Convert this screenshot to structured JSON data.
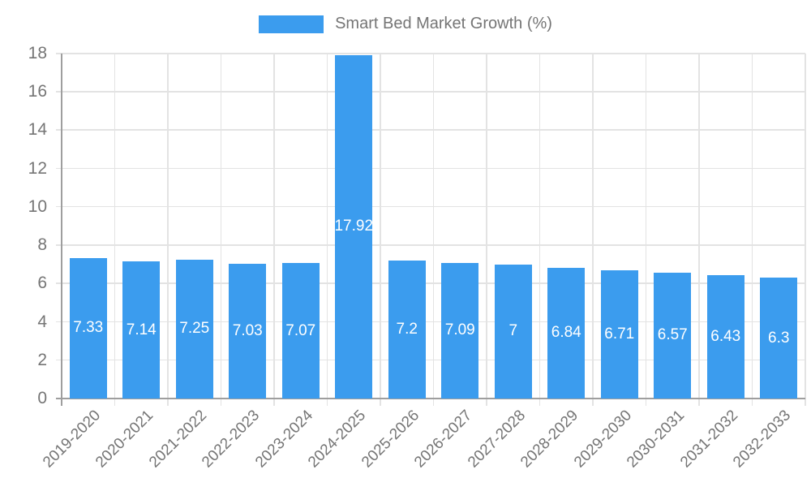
{
  "legend": {
    "label": "Smart Bed Market Growth (%)"
  },
  "colors": {
    "bar": "#3b9cee",
    "axis": "#9e9e9e",
    "grid": "#e3e3e3",
    "tick_text": "#757575",
    "bar_label_text": "#ffffff"
  },
  "chart_data": {
    "type": "bar",
    "title": "",
    "legend_entries": [
      "Smart Bed Market Growth (%)"
    ],
    "legend_position": "top-center",
    "categories": [
      "2019-2020",
      "2020-2021",
      "2021-2022",
      "2022-2023",
      "2023-2024",
      "2024-2025",
      "2025-2026",
      "2026-2027",
      "2027-2028",
      "2028-2029",
      "2029-2030",
      "2030-2031",
      "2031-2032",
      "2032-2033"
    ],
    "values": [
      7.33,
      7.14,
      7.25,
      7.03,
      7.07,
      17.92,
      7.2,
      7.09,
      7,
      6.84,
      6.71,
      6.57,
      6.43,
      6.3
    ],
    "series_name": "Smart Bed Market Growth (%)",
    "xlabel": "",
    "ylabel": "",
    "ylim": [
      0,
      18
    ],
    "yticks": [
      0,
      2,
      4,
      6,
      8,
      10,
      12,
      14,
      16,
      18
    ],
    "grid": true,
    "value_labels_inside_bars": true,
    "x_labels_rotated_degrees": 45
  }
}
